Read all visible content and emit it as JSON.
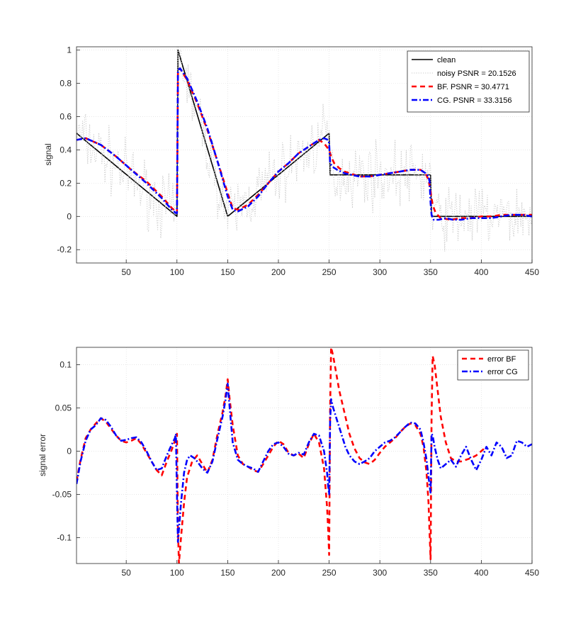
{
  "chart_data": [
    {
      "type": "line",
      "xlabel": "",
      "ylabel": "signal",
      "xlim": [
        1,
        450
      ],
      "ylim": [
        -0.28,
        1.02
      ],
      "xticks": [
        50,
        100,
        150,
        200,
        250,
        300,
        350,
        400,
        450
      ],
      "yticks": [
        -0.2,
        0,
        0.2,
        0.4,
        0.6,
        0.8,
        1
      ],
      "ytick_labels": [
        "-0.2",
        "0",
        "0.2",
        "0.4",
        "0.6",
        "0.8",
        "1"
      ],
      "grid": true,
      "legend_position": "top-right",
      "series": [
        {
          "name": "clean",
          "color": "#000000",
          "style": "solid",
          "x": [
            1,
            100,
            101,
            150,
            250,
            251,
            350,
            351,
            450
          ],
          "y": [
            0.5,
            0.0,
            1.0,
            0.0,
            0.5,
            0.25,
            0.25,
            0.0,
            0.0
          ]
        },
        {
          "name": "noisy PSNR = 20.1526",
          "color": "#c8c8c8",
          "style": "dotted",
          "noise_amplitude": 0.09,
          "clean_ref": "clean"
        },
        {
          "name": "BF.   PSNR = 30.4771",
          "color": "#ff0000",
          "style": "dashed",
          "x": [
            1,
            10,
            25,
            40,
            55,
            70,
            85,
            95,
            99,
            100,
            101,
            103,
            110,
            120,
            130,
            140,
            150,
            155,
            160,
            170,
            180,
            190,
            200,
            210,
            220,
            230,
            235,
            240,
            245,
            250,
            252,
            255,
            260,
            265,
            270,
            280,
            290,
            300,
            310,
            320,
            330,
            340,
            345,
            348,
            350,
            352,
            355,
            360,
            370,
            380,
            390,
            400,
            410,
            420,
            430,
            440,
            450
          ],
          "y": [
            0.46,
            0.47,
            0.43,
            0.36,
            0.28,
            0.21,
            0.12,
            0.05,
            0.03,
            0.02,
            0.87,
            0.89,
            0.82,
            0.68,
            0.52,
            0.33,
            0.14,
            0.05,
            0.04,
            0.07,
            0.13,
            0.2,
            0.27,
            0.32,
            0.38,
            0.42,
            0.44,
            0.46,
            0.44,
            0.4,
            0.36,
            0.32,
            0.29,
            0.27,
            0.26,
            0.24,
            0.24,
            0.25,
            0.26,
            0.27,
            0.28,
            0.28,
            0.26,
            0.22,
            0.15,
            0.07,
            0.02,
            -0.01,
            -0.02,
            -0.01,
            -0.01,
            0.0,
            0.0,
            0.01,
            0.01,
            0.01,
            0.01
          ]
        },
        {
          "name": "CG.   PSNR = 33.3156",
          "color": "#0000ff",
          "style": "dashdot",
          "x": [
            1,
            10,
            25,
            40,
            55,
            70,
            85,
            95,
            99,
            100,
            101,
            103,
            110,
            120,
            130,
            140,
            150,
            155,
            160,
            170,
            180,
            190,
            200,
            210,
            220,
            230,
            240,
            245,
            249,
            250,
            251,
            253,
            258,
            265,
            272,
            280,
            290,
            300,
            310,
            320,
            330,
            340,
            345,
            348,
            349,
            350,
            351,
            353,
            358,
            365,
            372,
            380,
            390,
            400,
            410,
            420,
            430,
            440,
            450
          ],
          "y": [
            0.46,
            0.47,
            0.43,
            0.36,
            0.28,
            0.2,
            0.11,
            0.04,
            0.02,
            0.02,
            0.88,
            0.89,
            0.83,
            0.69,
            0.53,
            0.33,
            0.12,
            0.04,
            0.03,
            0.06,
            0.12,
            0.2,
            0.27,
            0.32,
            0.38,
            0.42,
            0.46,
            0.47,
            0.46,
            0.44,
            0.32,
            0.3,
            0.28,
            0.26,
            0.25,
            0.24,
            0.24,
            0.25,
            0.26,
            0.27,
            0.28,
            0.28,
            0.26,
            0.24,
            0.21,
            0.08,
            0.01,
            -0.02,
            -0.02,
            -0.01,
            -0.02,
            -0.02,
            -0.01,
            -0.01,
            -0.01,
            0.0,
            0.01,
            0.01,
            0.0
          ]
        }
      ]
    },
    {
      "type": "line",
      "xlabel": "",
      "ylabel": "signal error",
      "xlim": [
        1,
        450
      ],
      "ylim": [
        -0.13,
        0.12
      ],
      "xticks": [
        50,
        100,
        150,
        200,
        250,
        300,
        350,
        400,
        450
      ],
      "yticks": [
        -0.1,
        -0.05,
        0,
        0.05,
        0.1
      ],
      "ytick_labels": [
        "-0.1",
        "-0.05",
        "0",
        "0.05",
        "0.1"
      ],
      "grid": true,
      "legend_position": "top-right",
      "series": [
        {
          "name": "error BF",
          "color": "#ff0000",
          "style": "dashed",
          "x": [
            1,
            5,
            10,
            15,
            20,
            25,
            30,
            35,
            40,
            45,
            50,
            55,
            60,
            65,
            70,
            75,
            80,
            85,
            90,
            95,
            98,
            99,
            100,
            101,
            102,
            104,
            107,
            110,
            115,
            120,
            125,
            130,
            135,
            140,
            145,
            148,
            150,
            152,
            155,
            160,
            165,
            170,
            175,
            180,
            185,
            190,
            195,
            200,
            205,
            210,
            215,
            220,
            225,
            230,
            235,
            240,
            245,
            248,
            249,
            250,
            251,
            252,
            254,
            257,
            260,
            265,
            270,
            275,
            280,
            285,
            290,
            295,
            300,
            305,
            310,
            315,
            320,
            325,
            330,
            335,
            340,
            343,
            346,
            348,
            349,
            350,
            351,
            352,
            354,
            357,
            360,
            365,
            370,
            375,
            380,
            385,
            390,
            395,
            400,
            405
          ],
          "y": [
            -0.035,
            -0.01,
            0.015,
            0.025,
            0.032,
            0.038,
            0.034,
            0.026,
            0.018,
            0.012,
            0.01,
            0.012,
            0.015,
            0.008,
            -0.002,
            -0.012,
            -0.022,
            -0.028,
            -0.012,
            0.002,
            0.012,
            0.018,
            0.02,
            -0.09,
            -0.13,
            -0.1,
            -0.06,
            -0.03,
            -0.012,
            -0.005,
            -0.015,
            -0.025,
            -0.01,
            0.02,
            0.045,
            0.065,
            0.083,
            0.06,
            0.03,
            -0.005,
            -0.015,
            -0.018,
            -0.022,
            -0.024,
            -0.015,
            -0.005,
            0.005,
            0.012,
            0.008,
            -0.002,
            -0.005,
            -0.003,
            -0.008,
            0.008,
            0.02,
            0.01,
            -0.02,
            -0.065,
            -0.09,
            -0.12,
            0.05,
            0.12,
            0.11,
            0.09,
            0.07,
            0.045,
            0.02,
            0.003,
            -0.008,
            -0.013,
            -0.015,
            -0.01,
            -0.002,
            0.005,
            0.01,
            0.015,
            0.022,
            0.028,
            0.032,
            0.03,
            0.02,
            0.005,
            -0.025,
            -0.06,
            -0.095,
            -0.125,
            0.04,
            0.11,
            0.1,
            0.07,
            0.04,
            0.01,
            -0.008,
            -0.012,
            -0.012,
            -0.01,
            -0.008,
            -0.005,
            0.0,
            0.005
          ]
        },
        {
          "name": "error CG",
          "color": "#0000ff",
          "style": "dashdot",
          "x": [
            1,
            5,
            10,
            15,
            20,
            25,
            30,
            35,
            40,
            45,
            50,
            55,
            60,
            65,
            70,
            75,
            80,
            85,
            90,
            95,
            98,
            99,
            100,
            101,
            102,
            104,
            107,
            110,
            113,
            117,
            120,
            125,
            130,
            135,
            140,
            145,
            148,
            150,
            152,
            155,
            160,
            165,
            170,
            175,
            180,
            185,
            190,
            195,
            200,
            205,
            210,
            215,
            220,
            225,
            230,
            235,
            240,
            245,
            248,
            249,
            250,
            251,
            252,
            254,
            258,
            262,
            266,
            270,
            275,
            280,
            285,
            290,
            295,
            300,
            305,
            310,
            315,
            320,
            325,
            330,
            335,
            340,
            343,
            346,
            348,
            349,
            350,
            351,
            352,
            354,
            357,
            360,
            365,
            370,
            375,
            380,
            385,
            390,
            395,
            400,
            405,
            410,
            415,
            420,
            425,
            430,
            435,
            440,
            445,
            450
          ],
          "y": [
            -0.038,
            -0.012,
            0.012,
            0.025,
            0.03,
            0.038,
            0.036,
            0.028,
            0.018,
            0.012,
            0.013,
            0.015,
            0.016,
            0.01,
            0.0,
            -0.012,
            -0.022,
            -0.02,
            -0.005,
            0.008,
            0.015,
            0.02,
            -0.05,
            -0.105,
            -0.09,
            -0.06,
            -0.025,
            -0.01,
            -0.005,
            -0.008,
            -0.012,
            -0.02,
            -0.025,
            -0.012,
            0.015,
            0.04,
            0.06,
            0.078,
            0.05,
            0.01,
            -0.01,
            -0.015,
            -0.018,
            -0.02,
            -0.024,
            -0.012,
            0.0,
            0.008,
            0.01,
            0.005,
            -0.003,
            -0.005,
            -0.002,
            -0.004,
            0.01,
            0.02,
            0.018,
            0.0,
            -0.025,
            -0.04,
            -0.05,
            0.035,
            0.06,
            0.05,
            0.035,
            0.02,
            0.005,
            -0.005,
            -0.012,
            -0.015,
            -0.012,
            -0.008,
            0.0,
            0.005,
            0.01,
            0.012,
            0.016,
            0.022,
            0.028,
            0.033,
            0.032,
            0.025,
            0.01,
            -0.01,
            -0.03,
            -0.04,
            -0.048,
            0.02,
            0.018,
            0.005,
            -0.01,
            -0.02,
            -0.015,
            -0.01,
            -0.018,
            -0.005,
            0.005,
            -0.01,
            -0.022,
            -0.01,
            0.005,
            -0.005,
            0.01,
            0.005,
            -0.008,
            -0.005,
            0.012,
            0.01,
            0.005,
            0.008
          ]
        }
      ]
    }
  ]
}
